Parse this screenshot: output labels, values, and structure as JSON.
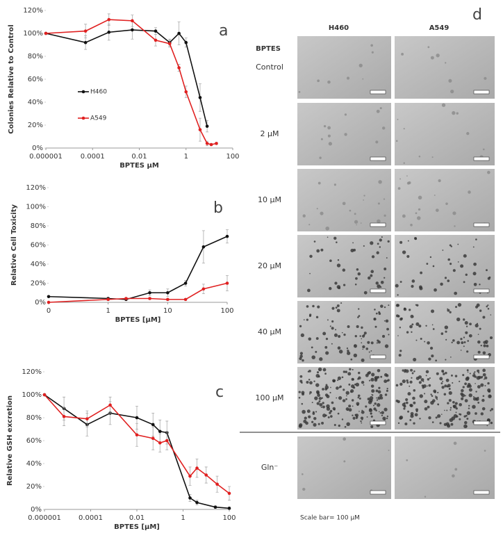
{
  "chart_data": [
    {
      "type": "line",
      "annotation": "a",
      "xlabel": "BPTES µM",
      "ylabel": "Colonies Relative to Control",
      "xscale": "log",
      "xlim": [
        1e-06,
        100
      ],
      "xticks": [
        1e-06,
        0.0001,
        0.01,
        1,
        100
      ],
      "ylim": [
        0,
        120
      ],
      "yticks": [
        {
          "value": 0,
          "label": "0%"
        },
        {
          "value": 20,
          "label": "20%"
        },
        {
          "value": 40,
          "label": "40%"
        },
        {
          "value": 60,
          "label": "60%"
        },
        {
          "value": 80,
          "label": "80%"
        },
        {
          "value": 100,
          "label": "100%"
        },
        {
          "value": 120,
          "label": "120%"
        }
      ],
      "legend": true,
      "series": [
        {
          "name": "H460",
          "color": "#111111",
          "x": [
            1e-06,
            5e-05,
            0.0005,
            0.005,
            0.05,
            0.2,
            0.5,
            1,
            4,
            8
          ],
          "values": [
            100,
            92,
            101,
            103,
            102,
            92,
            100,
            92,
            44,
            19
          ],
          "errors": [
            0,
            6,
            7,
            8,
            3,
            3,
            10,
            4,
            12,
            5
          ]
        },
        {
          "name": "A549",
          "color": "#e02020",
          "x": [
            1e-06,
            5e-05,
            0.0005,
            0.005,
            0.05,
            0.2,
            0.5,
            1,
            4,
            8,
            12,
            20
          ],
          "values": [
            100,
            102,
            112,
            111,
            94,
            91,
            70,
            49,
            16,
            4,
            3,
            4
          ],
          "errors": [
            0,
            6,
            5,
            5,
            5,
            3,
            3,
            5,
            10,
            2,
            1,
            1
          ]
        }
      ]
    },
    {
      "type": "line",
      "annotation": "b",
      "xlabel": "BPTES [µM]",
      "ylabel": "Relative Cell Toxicity",
      "xscale": "log",
      "xlim": [
        0.1,
        100
      ],
      "xticks": [
        {
          "value": 0.1,
          "label": "0"
        },
        1,
        10,
        100
      ],
      "ylim": [
        0,
        120
      ],
      "yticks": [
        {
          "value": 0,
          "label": "0%"
        },
        {
          "value": 20,
          "label": "20%"
        },
        {
          "value": 40,
          "label": "40%"
        },
        {
          "value": 60,
          "label": "60%"
        },
        {
          "value": 80,
          "label": "80%"
        },
        {
          "value": 100,
          "label": "100%"
        },
        {
          "value": 120,
          "label": "120%"
        }
      ],
      "legend": false,
      "series": [
        {
          "color": "#111111",
          "x": [
            0.1,
            1,
            2,
            5,
            10,
            20,
            40,
            100
          ],
          "values": [
            6,
            4,
            3,
            10,
            10,
            20,
            58,
            69
          ],
          "errors": [
            0,
            1,
            1,
            3,
            4,
            3,
            17,
            7
          ]
        },
        {
          "color": "#e02020",
          "x": [
            0.1,
            1,
            2,
            5,
            10,
            20,
            40,
            100
          ],
          "values": [
            0,
            3,
            4,
            4,
            3,
            3,
            14,
            20
          ],
          "errors": [
            0,
            1,
            1,
            1,
            1,
            1,
            5,
            8
          ]
        }
      ]
    },
    {
      "type": "line",
      "annotation": "c",
      "xlabel": "BPTES [µM]",
      "ylabel": "Relative  GSH excretion",
      "xscale": "log",
      "xlim": [
        1e-06,
        100
      ],
      "xticks": [
        1e-06,
        0.0001,
        0.01,
        1,
        100
      ],
      "ylim": [
        0,
        120
      ],
      "yticks": [
        {
          "value": 0,
          "label": "0%"
        },
        {
          "value": 20,
          "label": "20%"
        },
        {
          "value": 40,
          "label": "40%"
        },
        {
          "value": 60,
          "label": "60%"
        },
        {
          "value": 80,
          "label": "80%"
        },
        {
          "value": 100,
          "label": "100%"
        },
        {
          "value": 120,
          "label": "120%"
        }
      ],
      "legend": false,
      "series": [
        {
          "color": "#111111",
          "x": [
            1e-06,
            7e-06,
            7e-05,
            0.0007,
            0.01,
            0.05,
            0.1,
            0.2,
            2,
            4,
            25,
            100
          ],
          "values": [
            100,
            88,
            74,
            84,
            80,
            74,
            68,
            67,
            10,
            6,
            2,
            1
          ],
          "errors": [
            0,
            10,
            10,
            10,
            10,
            10,
            10,
            10,
            3,
            2,
            1,
            1
          ]
        },
        {
          "color": "#e02020",
          "x": [
            1e-06,
            7e-06,
            7e-05,
            0.0007,
            0.01,
            0.05,
            0.1,
            0.2,
            2,
            4,
            10,
            30,
            100
          ],
          "values": [
            100,
            81,
            79,
            91,
            65,
            62,
            58,
            60,
            29,
            36,
            30,
            22,
            14
          ],
          "errors": [
            0,
            8,
            7,
            7,
            10,
            10,
            8,
            8,
            8,
            8,
            7,
            7,
            6
          ]
        }
      ]
    }
  ],
  "panel_d": {
    "label": "d",
    "columns": [
      "H460",
      "A549"
    ],
    "row_header": "BPTES",
    "rows": [
      "Control",
      "2 µM",
      "10 µM",
      "20 µM",
      "40 µM",
      "100 µM",
      "Gln⁻"
    ],
    "caption": "Scale bar= 100 µM"
  }
}
